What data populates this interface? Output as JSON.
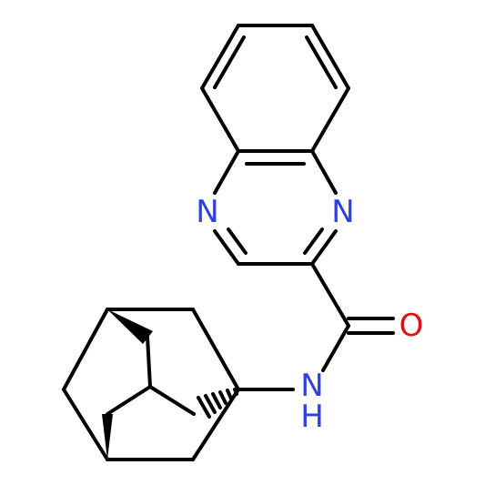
{
  "atoms": {
    "n1": "N",
    "n4": "N",
    "o": "O",
    "amide_n": "N",
    "amide_h": "H"
  }
}
